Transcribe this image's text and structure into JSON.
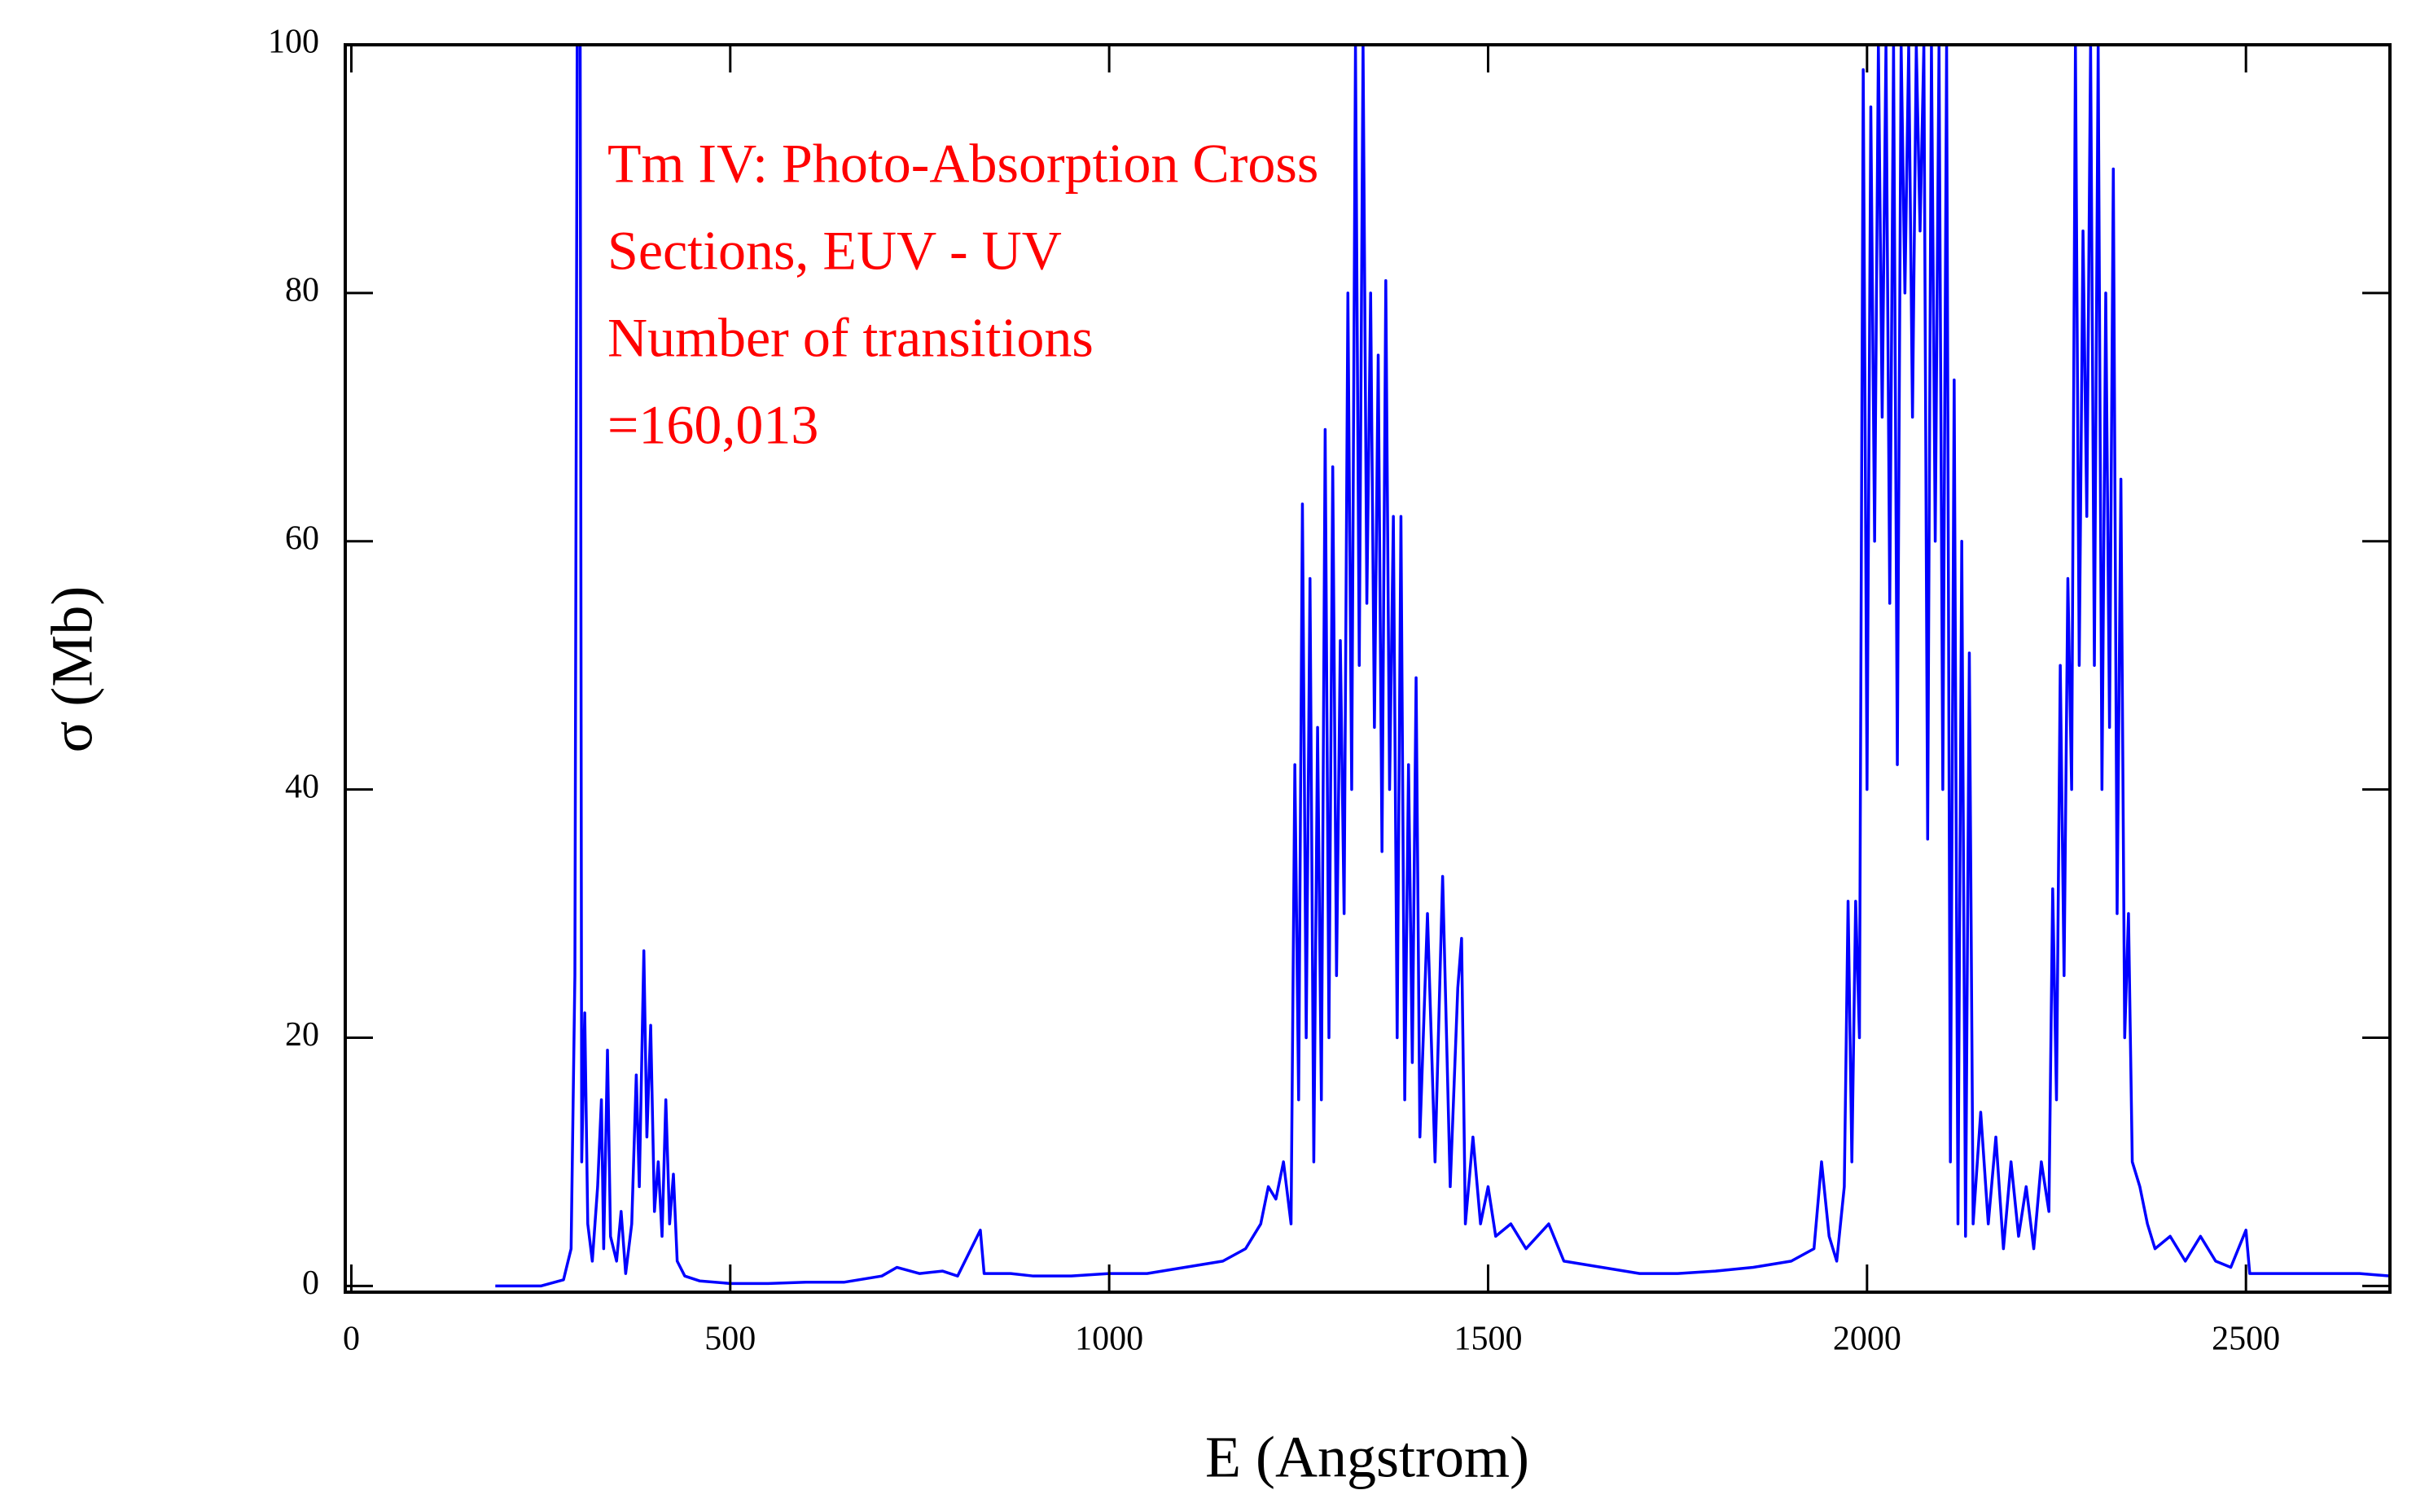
{
  "chart_data": {
    "type": "line",
    "annotation": [
      "Tm IV: Photo-Absorption Cross",
      "Sections, EUV - UV",
      "Number of transitions",
      "=160,013"
    ],
    "annotation_color": "#ff0000",
    "xlabel": "E (Angstrom)",
    "ylabel": "σ (Mb)",
    "xlim": [
      -8,
      2690
    ],
    "ylim": [
      -0.5,
      100
    ],
    "xticks": [
      0,
      500,
      1000,
      1500,
      2000,
      2500
    ],
    "yticks": [
      0,
      20,
      40,
      60,
      80,
      100
    ],
    "x": [
      190,
      250,
      280,
      290,
      295,
      298,
      300,
      302,
      304,
      308,
      312,
      318,
      325,
      330,
      333,
      338,
      342,
      350,
      356,
      362,
      370,
      376,
      380,
      386,
      390,
      395,
      400,
      405,
      410,
      415,
      420,
      425,
      430,
      440,
      460,
      500,
      550,
      600,
      650,
      700,
      720,
      750,
      780,
      800,
      830,
      835,
      870,
      900,
      950,
      1000,
      1050,
      1100,
      1150,
      1180,
      1200,
      1210,
      1220,
      1230,
      1240,
      1245,
      1250,
      1255,
      1260,
      1265,
      1270,
      1275,
      1280,
      1285,
      1290,
      1295,
      1300,
      1305,
      1310,
      1315,
      1320,
      1325,
      1330,
      1335,
      1340,
      1345,
      1350,
      1355,
      1360,
      1365,
      1370,
      1375,
      1380,
      1385,
      1390,
      1395,
      1400,
      1405,
      1410,
      1420,
      1430,
      1440,
      1450,
      1460,
      1465,
      1470,
      1480,
      1490,
      1500,
      1510,
      1530,
      1550,
      1580,
      1600,
      1650,
      1700,
      1750,
      1800,
      1850,
      1900,
      1930,
      1940,
      1950,
      1960,
      1970,
      1975,
      1980,
      1985,
      1990,
      1995,
      2000,
      2005,
      2010,
      2015,
      2020,
      2025,
      2030,
      2035,
      2040,
      2045,
      2050,
      2055,
      2060,
      2065,
      2070,
      2075,
      2080,
      2085,
      2090,
      2095,
      2100,
      2105,
      2110,
      2115,
      2120,
      2125,
      2130,
      2135,
      2140,
      2150,
      2160,
      2170,
      2180,
      2190,
      2200,
      2210,
      2220,
      2230,
      2240,
      2245,
      2250,
      2255,
      2260,
      2265,
      2270,
      2275,
      2280,
      2285,
      2290,
      2295,
      2300,
      2305,
      2310,
      2315,
      2320,
      2325,
      2330,
      2335,
      2340,
      2345,
      2350,
      2360,
      2370,
      2380,
      2400,
      2420,
      2440,
      2460,
      2480,
      2500,
      2505,
      2550,
      2600,
      2650,
      2690
    ],
    "series": [
      {
        "color": "#0000ff",
        "values": [
          0,
          0,
          0.5,
          3,
          25,
          100,
          100,
          100,
          10,
          22,
          5,
          2,
          8,
          15,
          3,
          19,
          4,
          2,
          6,
          1,
          5,
          17,
          8,
          27,
          12,
          21,
          6,
          10,
          4,
          15,
          5,
          9,
          2,
          0.8,
          0.4,
          0.2,
          0.2,
          0.3,
          0.3,
          0.8,
          1.5,
          1,
          1.2,
          0.8,
          4.5,
          1,
          1,
          0.8,
          0.8,
          1,
          1,
          1.5,
          2,
          3,
          5,
          8,
          7,
          10,
          5,
          42,
          15,
          63,
          20,
          57,
          10,
          45,
          15,
          69,
          20,
          66,
          25,
          52,
          30,
          80,
          40,
          100,
          50,
          100,
          55,
          80,
          45,
          75,
          35,
          81,
          40,
          62,
          20,
          62,
          15,
          42,
          18,
          49,
          12,
          30,
          10,
          33,
          8,
          24,
          28,
          5,
          12,
          5,
          8,
          4,
          5,
          3,
          5,
          2,
          1.5,
          1,
          1,
          1.2,
          1.5,
          2,
          3,
          10,
          4,
          2,
          8,
          31,
          10,
          31,
          20,
          98,
          40,
          95,
          60,
          100,
          70,
          100,
          55,
          100,
          42,
          100,
          80,
          100,
          70,
          100,
          85,
          100,
          36,
          100,
          60,
          100,
          40,
          100,
          10,
          73,
          5,
          60,
          4,
          51,
          5,
          14,
          5,
          12,
          3,
          10,
          4,
          8,
          3,
          10,
          6,
          32,
          15,
          50,
          25,
          57,
          40,
          100,
          50,
          85,
          62,
          100,
          50,
          100,
          40,
          80,
          45,
          90,
          30,
          65,
          20,
          30,
          10,
          8,
          5,
          3,
          4,
          2,
          4,
          2,
          1.5,
          4.5,
          1,
          1,
          1,
          1,
          0.8
        ]
      }
    ]
  }
}
